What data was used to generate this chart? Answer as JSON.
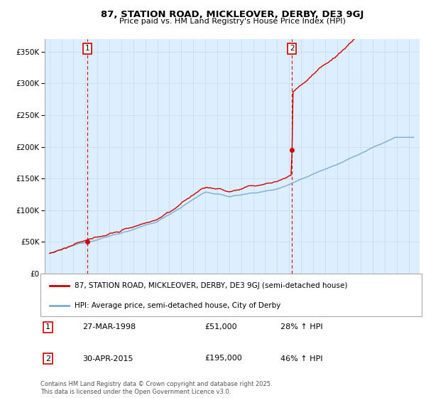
{
  "title": "87, STATION ROAD, MICKLEOVER, DERBY, DE3 9GJ",
  "subtitle": "Price paid vs. HM Land Registry's House Price Index (HPI)",
  "property_label": "87, STATION ROAD, MICKLEOVER, DERBY, DE3 9GJ (semi-detached house)",
  "hpi_label": "HPI: Average price, semi-detached house, City of Derby",
  "purchase1_date": "27-MAR-1998",
  "purchase1_price": 51000,
  "purchase1_hpi": "28% ↑ HPI",
  "purchase2_date": "30-APR-2015",
  "purchase2_price": 195000,
  "purchase2_hpi": "46% ↑ HPI",
  "property_color": "#cc0000",
  "hpi_color": "#7aadce",
  "vline_color": "#cc0000",
  "grid_color": "#c8d8e8",
  "plot_bg_color": "#ddeeff",
  "background_color": "#ffffff",
  "ylim": [
    0,
    370000
  ],
  "yticks": [
    0,
    50000,
    100000,
    150000,
    200000,
    250000,
    300000,
    350000
  ],
  "ytick_labels": [
    "£0",
    "£50K",
    "£100K",
    "£150K",
    "£200K",
    "£250K",
    "£300K",
    "£350K"
  ],
  "footnote": "Contains HM Land Registry data © Crown copyright and database right 2025.\nThis data is licensed under the Open Government Licence v3.0."
}
